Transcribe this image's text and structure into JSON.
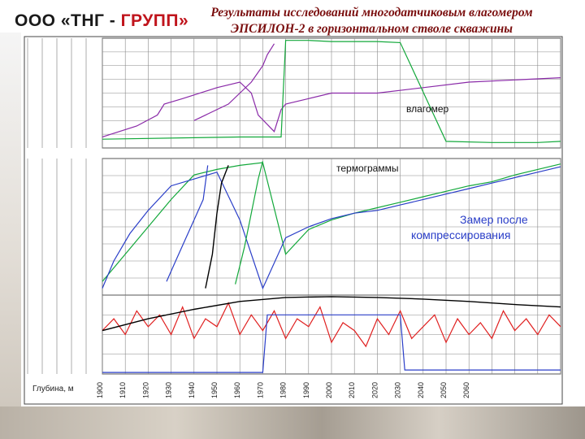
{
  "header": {
    "logo_part1": "ООО «ТНГ - ",
    "logo_part2": "ГРУПП»",
    "title_line1": "Результаты исследований многодатчиковым влагомером",
    "title_line2": "ЭПСИЛОН-2 в горизонтальном стволе скважины"
  },
  "annotations": {
    "moisture": "влагомер",
    "thermograms": "термограммы",
    "after_line1": "Замер после",
    "after_line2": "компрессирования"
  },
  "colors": {
    "title": "#7a0e0e",
    "logo_red": "#c0141c",
    "grid": "#8a8a8a",
    "green": "#12a83a",
    "purple": "#8a2aa8",
    "blue": "#2a3ec8",
    "red": "#e02020",
    "black": "#000000"
  },
  "chart_data": {
    "type": "line",
    "xlabel": "Глубина, м",
    "xlim": [
      1900,
      2100
    ],
    "x_ticks": [
      "1900",
      "1910",
      "1920",
      "1930",
      "1940",
      "1950",
      "1960",
      "1970",
      "1980",
      "1990",
      "2000",
      "2010",
      "2020",
      "2030",
      "2040",
      "2050",
      "2060"
    ],
    "panels": [
      {
        "name": "moisture",
        "series": [
          {
            "color": "purple",
            "x": [
              1900,
              1915,
              1924,
              1927,
              1935,
              1950,
              1960,
              1965,
              1968,
              1975,
              1978,
              1980,
              1990,
              2000,
              2020,
              2040,
              2060,
              2080,
              2100
            ],
            "y": [
              0.1,
              0.2,
              0.3,
              0.4,
              0.45,
              0.55,
              0.6,
              0.5,
              0.3,
              0.15,
              0.35,
              0.4,
              0.45,
              0.5,
              0.5,
              0.55,
              0.6,
              0.62,
              0.64
            ]
          },
          {
            "color": "green",
            "x": [
              1900,
              1960,
              1975,
              1978,
              1980,
              1985,
              1990,
              2000,
              2010,
              2020,
              2030,
              2050,
              2070,
              2090,
              2100
            ],
            "y": [
              0.08,
              0.1,
              0.1,
              0.1,
              0.98,
              0.98,
              0.98,
              0.97,
              0.97,
              0.97,
              0.96,
              0.06,
              0.05,
              0.05,
              0.06
            ]
          },
          {
            "color": "purple",
            "x": [
              1940,
              1955,
              1965,
              1970,
              1972,
              1975
            ],
            "y": [
              0.25,
              0.4,
              0.6,
              0.75,
              0.85,
              0.95
            ]
          }
        ]
      },
      {
        "name": "thermograms",
        "series": [
          {
            "color": "green",
            "x": [
              1900,
              1910,
              1920,
              1930,
              1940,
              1950,
              1960,
              1970,
              1980,
              1990,
              2000,
              2010,
              2020,
              2030,
              2040,
              2050,
              2060,
              2070,
              2080,
              2090,
              2100
            ],
            "y": [
              0.1,
              0.3,
              0.5,
              0.7,
              0.88,
              0.92,
              0.95,
              0.97,
              0.3,
              0.48,
              0.55,
              0.6,
              0.64,
              0.68,
              0.72,
              0.76,
              0.8,
              0.83,
              0.88,
              0.92,
              0.96
            ]
          },
          {
            "color": "blue",
            "x": [
              1900,
              1905,
              1912,
              1920,
              1930,
              1940,
              1950,
              1960,
              1970,
              1980,
              1990,
              2000,
              2010,
              2020,
              2030,
              2040,
              2050,
              2060,
              2070,
              2080,
              2090,
              2100
            ],
            "y": [
              0.05,
              0.25,
              0.45,
              0.62,
              0.8,
              0.85,
              0.9,
              0.55,
              0.05,
              0.42,
              0.5,
              0.56,
              0.6,
              0.62,
              0.66,
              0.7,
              0.74,
              0.78,
              0.82,
              0.86,
              0.9,
              0.94
            ]
          },
          {
            "color": "black",
            "x": [
              1945,
              1948,
              1950,
              1952,
              1955
            ],
            "y": [
              0.05,
              0.3,
              0.6,
              0.82,
              0.95
            ]
          },
          {
            "color": "green",
            "x": [
              1958,
              1962,
              1965,
              1968,
              1970
            ],
            "y": [
              0.08,
              0.35,
              0.6,
              0.85,
              0.98
            ]
          },
          {
            "color": "blue",
            "x": [
              1928,
              1932,
              1936,
              1940,
              1944,
              1946
            ],
            "y": [
              0.1,
              0.25,
              0.4,
              0.55,
              0.7,
              0.95
            ]
          }
        ]
      },
      {
        "name": "bottom",
        "series": [
          {
            "color": "red",
            "x": [
              1900,
              1905,
              1910,
              1915,
              1920,
              1925,
              1930,
              1935,
              1940,
              1945,
              1950,
              1955,
              1960,
              1965,
              1970,
              1975,
              1980,
              1985,
              1990,
              1995,
              2000,
              2005,
              2010,
              2015,
              2020,
              2025,
              2030,
              2035,
              2040,
              2045,
              2050,
              2055,
              2060,
              2065,
              2070,
              2075,
              2080,
              2085,
              2090,
              2095,
              2100
            ],
            "y": [
              0.55,
              0.7,
              0.5,
              0.8,
              0.6,
              0.75,
              0.5,
              0.85,
              0.45,
              0.7,
              0.6,
              0.9,
              0.5,
              0.75,
              0.55,
              0.8,
              0.45,
              0.7,
              0.6,
              0.85,
              0.4,
              0.65,
              0.55,
              0.35,
              0.7,
              0.5,
              0.8,
              0.45,
              0.6,
              0.75,
              0.4,
              0.7,
              0.5,
              0.65,
              0.45,
              0.8,
              0.55,
              0.7,
              0.5,
              0.75,
              0.6
            ]
          },
          {
            "color": "black",
            "x": [
              1900,
              1920,
              1940,
              1960,
              1980,
              2000,
              2020,
              2040,
              2060,
              2080,
              2100
            ],
            "y": [
              0.55,
              0.7,
              0.82,
              0.92,
              0.97,
              0.98,
              0.97,
              0.95,
              0.92,
              0.88,
              0.85
            ]
          },
          {
            "color": "blue",
            "x": [
              1900,
              1970,
              1972,
              1975,
              2030,
              2032,
              2040,
              2060,
              2080,
              2100
            ],
            "y": [
              0.02,
              0.02,
              0.75,
              0.75,
              0.75,
              0.05,
              0.05,
              0.05,
              0.05,
              0.05
            ]
          }
        ]
      }
    ]
  }
}
